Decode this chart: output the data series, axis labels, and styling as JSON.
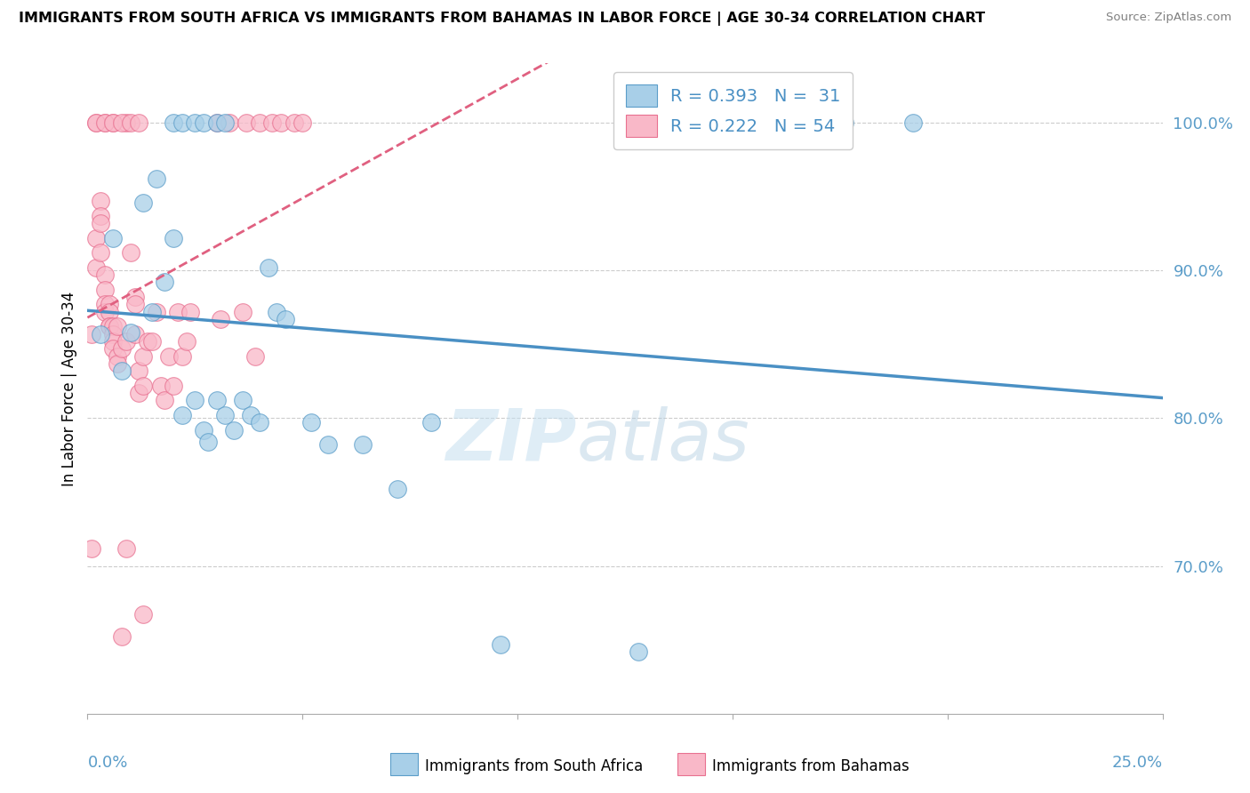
{
  "title": "IMMIGRANTS FROM SOUTH AFRICA VS IMMIGRANTS FROM BAHAMAS IN LABOR FORCE | AGE 30-34 CORRELATION CHART",
  "source": "Source: ZipAtlas.com",
  "ylabel": "In Labor Force | Age 30-34",
  "xlim": [
    0.0,
    0.25
  ],
  "ylim": [
    0.6,
    1.04
  ],
  "watermark_zip": "ZIP",
  "watermark_atlas": "atlas",
  "legend_r_blue": "R = 0.393",
  "legend_n_blue": "N =  31",
  "legend_r_pink": "R = 0.222",
  "legend_n_pink": "N = 54",
  "blue_color": "#a8cfe8",
  "pink_color": "#f9b8c8",
  "blue_edge_color": "#5b9dc9",
  "pink_edge_color": "#e87090",
  "blue_line_color": "#4a90c4",
  "pink_line_color": "#e06080",
  "right_tick_color": "#5b9dc9",
  "grid_color": "#cccccc",
  "blue_scatter": [
    [
      0.003,
      0.857
    ],
    [
      0.006,
      0.922
    ],
    [
      0.008,
      0.832
    ],
    [
      0.01,
      0.858
    ],
    [
      0.013,
      0.946
    ],
    [
      0.015,
      0.872
    ],
    [
      0.016,
      0.962
    ],
    [
      0.018,
      0.892
    ],
    [
      0.02,
      0.922
    ],
    [
      0.022,
      0.802
    ],
    [
      0.025,
      0.812
    ],
    [
      0.027,
      0.792
    ],
    [
      0.028,
      0.784
    ],
    [
      0.03,
      0.812
    ],
    [
      0.032,
      0.802
    ],
    [
      0.034,
      0.792
    ],
    [
      0.036,
      0.812
    ],
    [
      0.038,
      0.802
    ],
    [
      0.04,
      0.797
    ],
    [
      0.042,
      0.902
    ],
    [
      0.044,
      0.872
    ],
    [
      0.046,
      0.867
    ],
    [
      0.052,
      0.797
    ],
    [
      0.056,
      0.782
    ],
    [
      0.064,
      0.782
    ],
    [
      0.072,
      0.752
    ],
    [
      0.08,
      0.797
    ],
    [
      0.096,
      0.647
    ],
    [
      0.128,
      0.642
    ],
    [
      0.176,
      1.0
    ],
    [
      0.192,
      1.0
    ]
  ],
  "pink_scatter": [
    [
      0.001,
      0.857
    ],
    [
      0.002,
      0.922
    ],
    [
      0.002,
      0.902
    ],
    [
      0.003,
      0.947
    ],
    [
      0.003,
      0.937
    ],
    [
      0.003,
      0.932
    ],
    [
      0.003,
      0.912
    ],
    [
      0.004,
      0.897
    ],
    [
      0.004,
      0.887
    ],
    [
      0.004,
      0.877
    ],
    [
      0.004,
      0.872
    ],
    [
      0.005,
      0.877
    ],
    [
      0.005,
      0.872
    ],
    [
      0.005,
      0.862
    ],
    [
      0.005,
      0.862
    ],
    [
      0.006,
      0.862
    ],
    [
      0.006,
      0.857
    ],
    [
      0.006,
      0.852
    ],
    [
      0.006,
      0.847
    ],
    [
      0.007,
      0.862
    ],
    [
      0.007,
      0.842
    ],
    [
      0.007,
      0.837
    ],
    [
      0.008,
      0.847
    ],
    [
      0.009,
      0.852
    ],
    [
      0.01,
      0.912
    ],
    [
      0.011,
      0.882
    ],
    [
      0.011,
      0.877
    ],
    [
      0.011,
      0.857
    ],
    [
      0.012,
      0.832
    ],
    [
      0.012,
      0.817
    ],
    [
      0.013,
      0.842
    ],
    [
      0.013,
      0.822
    ],
    [
      0.014,
      0.852
    ],
    [
      0.015,
      0.852
    ],
    [
      0.016,
      0.872
    ],
    [
      0.017,
      0.822
    ],
    [
      0.018,
      0.812
    ],
    [
      0.019,
      0.842
    ],
    [
      0.02,
      0.822
    ],
    [
      0.021,
      0.872
    ],
    [
      0.022,
      0.842
    ],
    [
      0.023,
      0.852
    ],
    [
      0.024,
      0.872
    ],
    [
      0.031,
      0.867
    ],
    [
      0.036,
      0.872
    ],
    [
      0.039,
      0.842
    ],
    [
      0.009,
      0.712
    ],
    [
      0.013,
      0.667
    ],
    [
      0.001,
      0.712
    ],
    [
      0.008,
      0.652
    ],
    [
      0.002,
      1.0
    ],
    [
      0.004,
      1.0
    ],
    [
      0.006,
      1.0
    ],
    [
      0.009,
      1.0
    ]
  ],
  "pink_top_scatter": [
    [
      0.002,
      1.0
    ],
    [
      0.004,
      1.0
    ],
    [
      0.006,
      1.0
    ],
    [
      0.008,
      1.0
    ],
    [
      0.01,
      1.0
    ],
    [
      0.012,
      1.0
    ],
    [
      0.03,
      1.0
    ],
    [
      0.033,
      1.0
    ],
    [
      0.037,
      1.0
    ],
    [
      0.04,
      1.0
    ],
    [
      0.043,
      1.0
    ],
    [
      0.045,
      1.0
    ],
    [
      0.048,
      1.0
    ],
    [
      0.05,
      1.0
    ]
  ],
  "blue_top_scatter": [
    [
      0.02,
      1.0
    ],
    [
      0.022,
      1.0
    ],
    [
      0.025,
      1.0
    ],
    [
      0.027,
      1.0
    ],
    [
      0.03,
      1.0
    ],
    [
      0.032,
      1.0
    ]
  ]
}
